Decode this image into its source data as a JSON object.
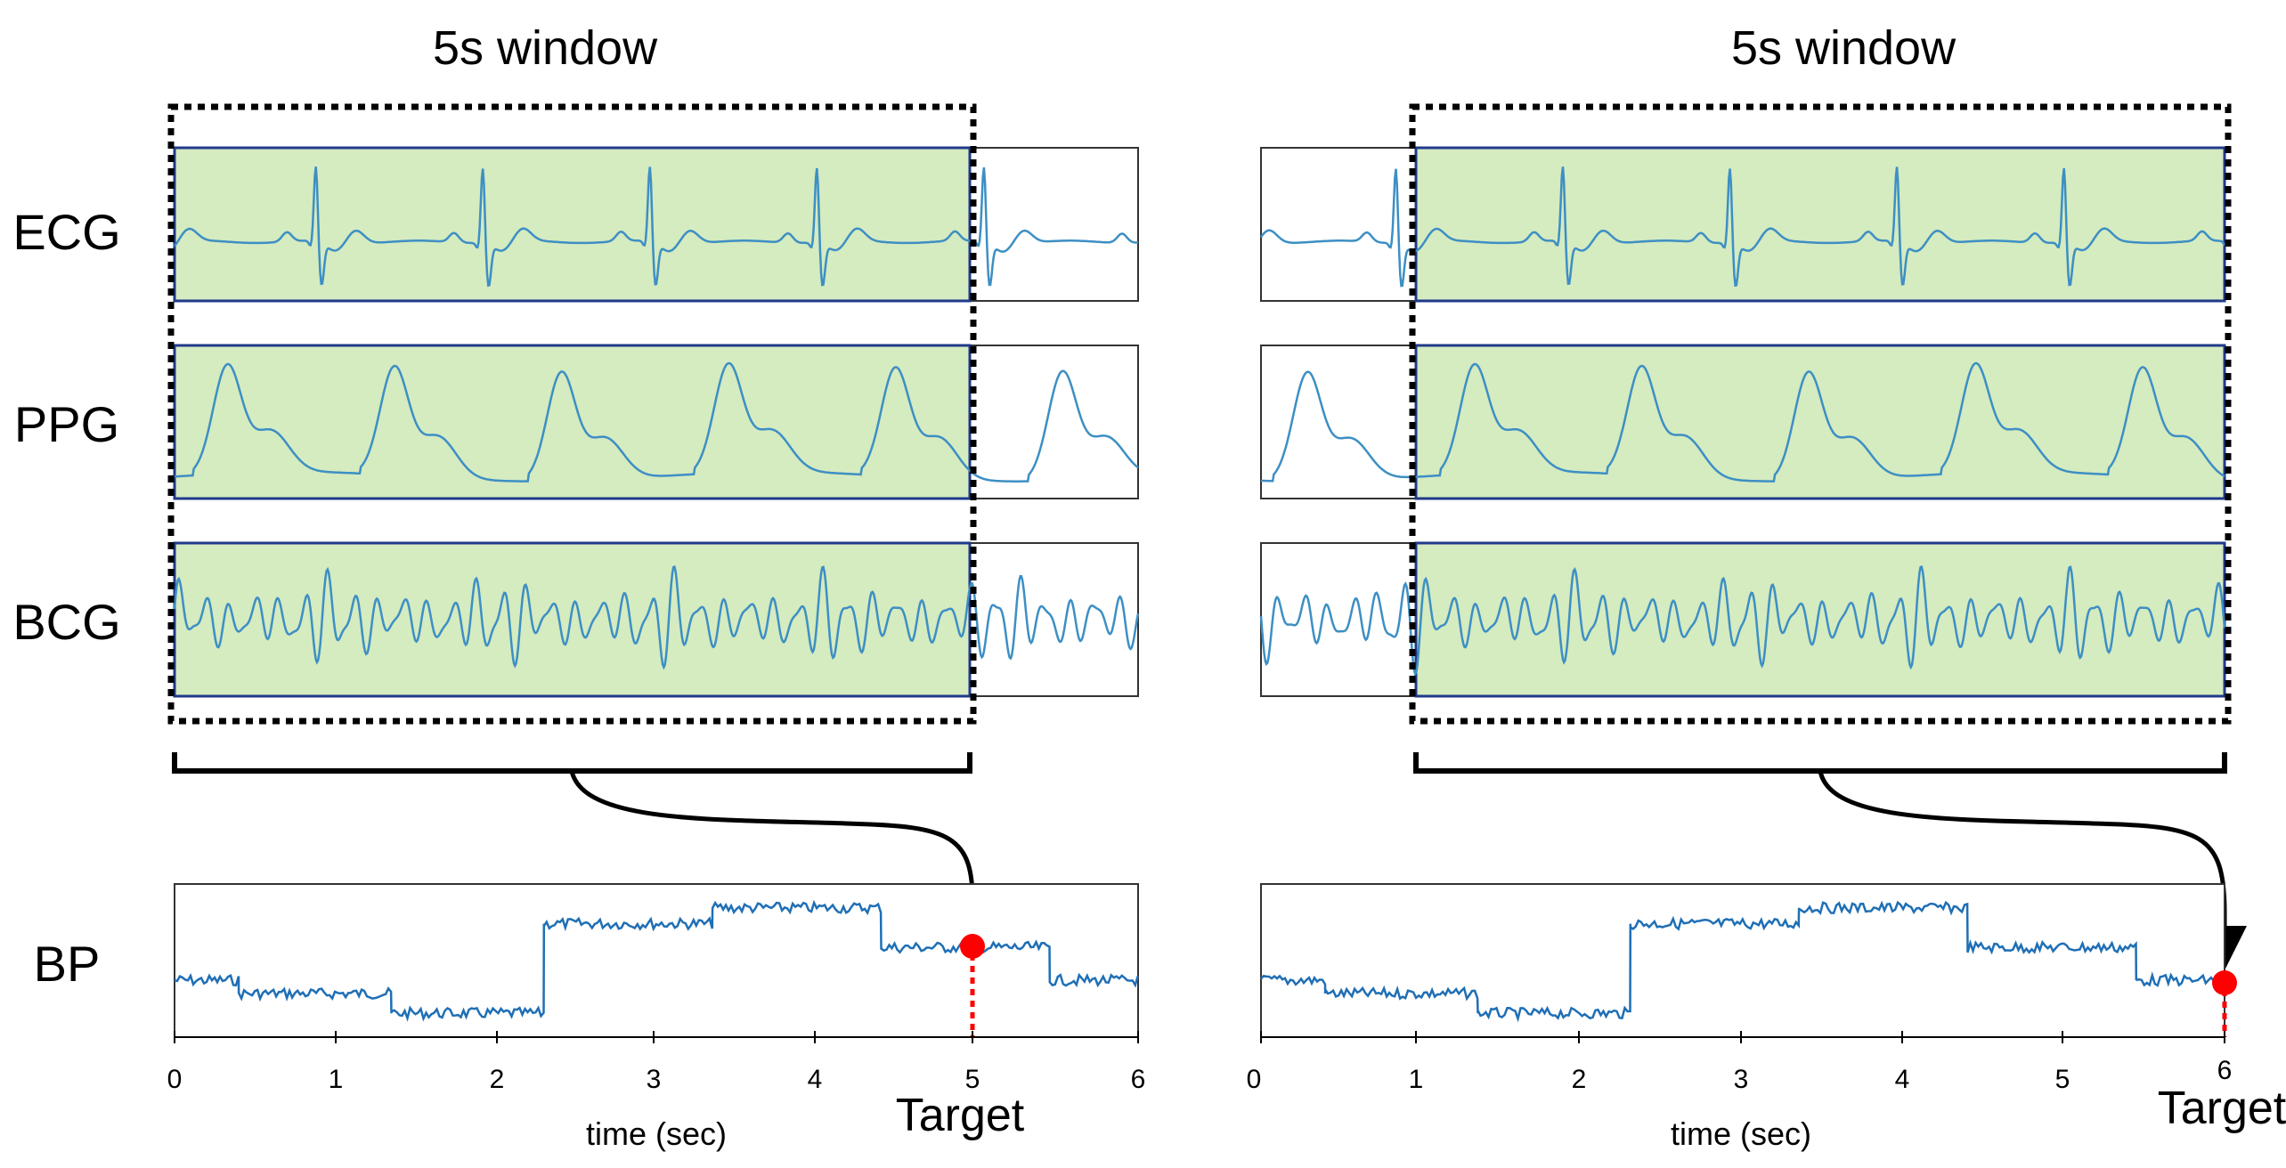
{
  "row_labels": {
    "ecg": "ECG",
    "ppg": "PPG",
    "bcg": "BCG",
    "bp": "BP"
  },
  "panels": [
    {
      "id": "left",
      "window_title": "5s window",
      "window_start_sec": 0,
      "window_end_sec": 5,
      "target_sec": 5,
      "target_label": "Target",
      "axis_title": "time (sec)",
      "ticks": [
        "0",
        "1",
        "2",
        "3",
        "4",
        "5",
        "6"
      ]
    },
    {
      "id": "right",
      "window_title": "5s window",
      "window_start_sec": 1,
      "window_end_sec": 6,
      "target_sec": 6,
      "target_label": "Target",
      "axis_title": "time (sec)",
      "ticks": [
        "0",
        "1",
        "2",
        "3",
        "4",
        "5",
        "6"
      ]
    }
  ],
  "chart_data": {
    "type": "line",
    "title": "",
    "xlabel": "time (sec)",
    "ylabel": "BP",
    "xlim": [
      0,
      6
    ],
    "series": [
      {
        "name": "BP",
        "steps": [
          {
            "from": 0.0,
            "to": 0.4,
            "level": 0.35
          },
          {
            "from": 0.4,
            "to": 1.35,
            "level": 0.25
          },
          {
            "from": 1.35,
            "to": 2.3,
            "level": 0.1
          },
          {
            "from": 2.3,
            "to": 3.35,
            "level": 0.78
          },
          {
            "from": 3.35,
            "to": 4.4,
            "level": 0.9
          },
          {
            "from": 4.4,
            "to": 5.45,
            "level": 0.6
          },
          {
            "from": 5.45,
            "to": 6.0,
            "level": 0.35
          }
        ]
      }
    ]
  },
  "colors": {
    "window_fill": "#d5ebc0",
    "signal": "#3d8fc4",
    "bp_line": "#1f6fb5",
    "target_dot": "#ff0000",
    "window_border": "#1f3a8a"
  }
}
